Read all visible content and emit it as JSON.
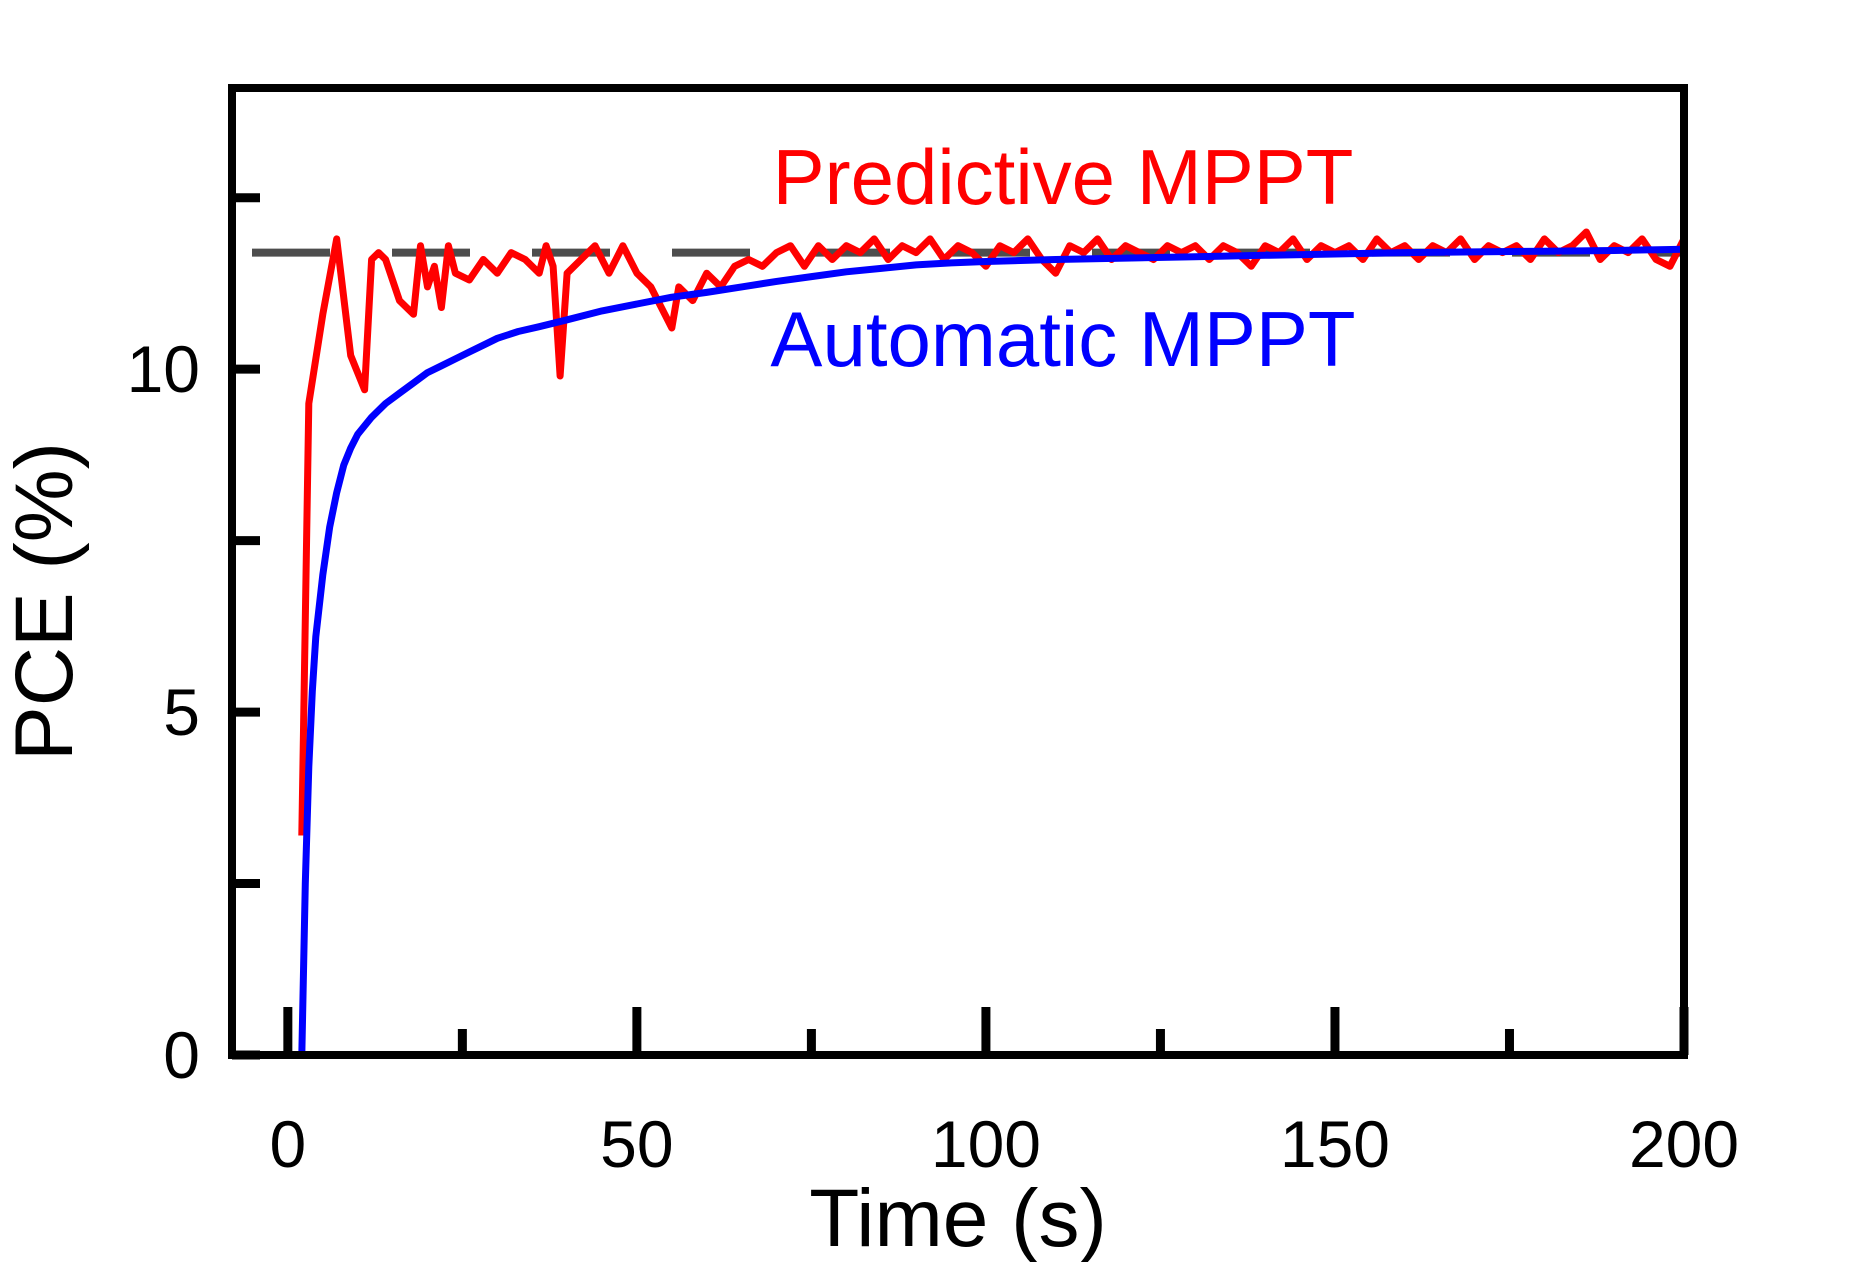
{
  "chart_data": {
    "type": "line",
    "title": "",
    "xlabel": "Time (s)",
    "ylabel": "PCE (%)",
    "xlim": [
      -8,
      200
    ],
    "ylim": [
      0,
      14.1
    ],
    "x_ticks": [
      0,
      50,
      100,
      150,
      200
    ],
    "x_ticklabels": [
      "0",
      "50",
      "100",
      "150",
      "200"
    ],
    "x_minor_ticks": [
      25,
      75,
      125,
      175
    ],
    "y_ticks": [
      0,
      5,
      10
    ],
    "y_ticklabels": [
      "0",
      "5",
      "10"
    ],
    "y_minor_ticks": [
      2.5,
      7.5,
      12.5
    ],
    "grid": false,
    "legend": "none",
    "reference_line": {
      "style": "dashed",
      "y": 11.7,
      "color": "#4d4d4d"
    },
    "series": [
      {
        "name": "Predictive MPPT",
        "color": "#ff0000",
        "label_position": "top-center",
        "x": [
          2,
          3,
          5,
          7,
          9,
          11,
          12,
          13,
          14,
          16,
          18,
          19,
          20,
          21,
          22,
          23,
          24,
          26,
          28,
          30,
          32,
          34,
          36,
          37,
          38,
          39,
          40,
          42,
          44,
          46,
          48,
          50,
          52,
          54,
          55,
          56,
          58,
          60,
          62,
          64,
          66,
          68,
          70,
          72,
          74,
          76,
          78,
          80,
          82,
          84,
          86,
          88,
          90,
          92,
          94,
          96,
          98,
          100,
          102,
          104,
          106,
          108,
          110,
          112,
          114,
          116,
          118,
          120,
          122,
          124,
          126,
          128,
          130,
          132,
          134,
          136,
          138,
          140,
          142,
          144,
          146,
          148,
          150,
          152,
          154,
          156,
          158,
          160,
          162,
          164,
          166,
          168,
          170,
          172,
          174,
          176,
          178,
          180,
          182,
          184,
          186,
          188,
          190,
          192,
          194,
          196,
          198,
          200
        ],
        "y": [
          3.2,
          9.5,
          10.8,
          11.9,
          10.2,
          9.7,
          11.6,
          11.7,
          11.6,
          11.0,
          10.8,
          11.8,
          11.2,
          11.5,
          10.9,
          11.8,
          11.4,
          11.3,
          11.6,
          11.4,
          11.7,
          11.6,
          11.4,
          11.8,
          11.5,
          9.9,
          11.4,
          11.6,
          11.8,
          11.4,
          11.8,
          11.4,
          11.2,
          10.8,
          10.6,
          11.2,
          11.0,
          11.4,
          11.2,
          11.5,
          11.6,
          11.5,
          11.7,
          11.8,
          11.5,
          11.8,
          11.6,
          11.8,
          11.7,
          11.9,
          11.6,
          11.8,
          11.7,
          11.9,
          11.6,
          11.8,
          11.7,
          11.5,
          11.8,
          11.7,
          11.9,
          11.6,
          11.4,
          11.8,
          11.7,
          11.9,
          11.6,
          11.8,
          11.7,
          11.6,
          11.8,
          11.7,
          11.8,
          11.6,
          11.8,
          11.7,
          11.5,
          11.8,
          11.7,
          11.9,
          11.6,
          11.8,
          11.7,
          11.8,
          11.6,
          11.9,
          11.7,
          11.8,
          11.6,
          11.8,
          11.7,
          11.9,
          11.6,
          11.8,
          11.7,
          11.8,
          11.6,
          11.9,
          11.7,
          11.8,
          12.0,
          11.6,
          11.8,
          11.7,
          11.9,
          11.6,
          11.5,
          11.9
        ]
      },
      {
        "name": "Automatic MPPT",
        "color": "#0000ff",
        "label_position": "center",
        "x": [
          2,
          2.5,
          3,
          3.5,
          4,
          5,
          6,
          7,
          8,
          9,
          10,
          12,
          14,
          16,
          18,
          20,
          22,
          24,
          26,
          28,
          30,
          33,
          36,
          40,
          45,
          50,
          55,
          60,
          65,
          70,
          75,
          80,
          85,
          90,
          95,
          100,
          110,
          120,
          130,
          140,
          150,
          160,
          170,
          180,
          190,
          200
        ],
        "y": [
          0,
          2.5,
          4.2,
          5.3,
          6.1,
          7.0,
          7.7,
          8.2,
          8.6,
          8.85,
          9.05,
          9.3,
          9.5,
          9.65,
          9.8,
          9.95,
          10.05,
          10.15,
          10.25,
          10.35,
          10.45,
          10.55,
          10.62,
          10.72,
          10.85,
          10.95,
          11.05,
          11.12,
          11.2,
          11.28,
          11.35,
          11.42,
          11.47,
          11.52,
          11.55,
          11.57,
          11.6,
          11.62,
          11.64,
          11.66,
          11.68,
          11.7,
          11.71,
          11.72,
          11.73,
          11.75
        ]
      }
    ]
  }
}
